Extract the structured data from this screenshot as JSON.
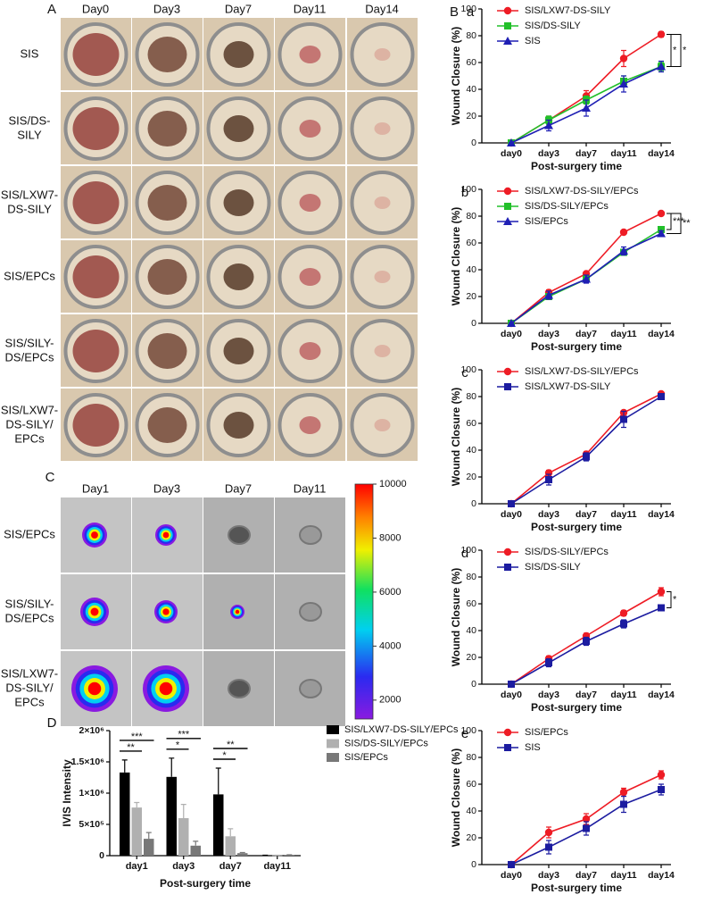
{
  "wound_photos": {
    "panel_label": "A",
    "days": [
      "Day0",
      "Day3",
      "Day7",
      "Day11",
      "Day14"
    ],
    "groups": [
      [
        "SIS"
      ],
      [
        "SIS/DS-",
        "SILY"
      ],
      [
        "SIS/LXW7-",
        "DS-SILY"
      ],
      [
        "SIS/EPCs"
      ],
      [
        "SIS/SILY-",
        "DS/EPCs"
      ],
      [
        "SIS/LXW7-",
        "DS-SILY/",
        "EPCs"
      ]
    ]
  },
  "ivis_photos": {
    "panel_label": "C",
    "days": [
      "Day1",
      "Day3",
      "Day7",
      "Day11"
    ],
    "groups": [
      [
        "SIS/EPCs"
      ],
      [
        "SIS/SILY-",
        "DS/EPCs"
      ],
      [
        "SIS/LXW7-",
        "DS-SILY/",
        "EPCs"
      ]
    ],
    "colorbar": {
      "ylim": [
        1300,
        10000
      ],
      "yticks": [
        10000,
        8000,
        6000,
        4000,
        2000
      ]
    }
  },
  "chart_data": [
    {
      "type": "line",
      "panel_label": "B",
      "label": "a",
      "categories": [
        "day0",
        "day3",
        "day7",
        "day11",
        "day14"
      ],
      "xlabel": "Post-surgery time",
      "ylabel": "Wound Closure (%)",
      "ylim": [
        0,
        100
      ],
      "yticks": [
        0,
        20,
        40,
        60,
        80,
        100
      ],
      "series": [
        {
          "name": "SIS/LXW7-DS-SILY",
          "color": "#ee1c25",
          "marker": "circle",
          "values": [
            0,
            17,
            35,
            63,
            81
          ],
          "errors": [
            0,
            3,
            4,
            6,
            2
          ]
        },
        {
          "name": "SIS/DS-SILY",
          "color": "#22c02a",
          "marker": "square",
          "values": [
            0,
            17,
            32,
            46,
            57
          ],
          "errors": [
            0,
            3,
            3,
            4,
            3
          ]
        },
        {
          "name": "SIS",
          "color": "#1f1fb4",
          "marker": "triangle",
          "values": [
            0,
            13,
            26,
            44,
            57
          ],
          "errors": [
            0,
            4,
            6,
            6,
            4
          ]
        }
      ],
      "annotations": [
        "*",
        "*"
      ]
    },
    {
      "type": "line",
      "label": "b",
      "categories": [
        "day0",
        "day3",
        "day7",
        "day11",
        "day14"
      ],
      "xlabel": "Post-surgery time",
      "ylabel": "Wound Closure (%)",
      "ylim": [
        0,
        100
      ],
      "yticks": [
        0,
        20,
        40,
        60,
        80,
        100
      ],
      "series": [
        {
          "name": "SIS/LXW7-DS-SILY/EPCs",
          "color": "#ee1c25",
          "marker": "circle",
          "values": [
            0,
            23,
            37,
            68,
            82
          ],
          "errors": [
            0,
            2,
            1,
            1,
            1
          ]
        },
        {
          "name": "SIS/DS-SILY/EPCs",
          "color": "#22c02a",
          "marker": "square",
          "values": [
            0,
            20,
            33,
            53,
            70
          ],
          "errors": [
            0,
            2,
            2,
            2,
            2
          ]
        },
        {
          "name": "SIS/EPCs",
          "color": "#1f1fb4",
          "marker": "triangle",
          "values": [
            0,
            21,
            33,
            54,
            67
          ],
          "errors": [
            0,
            3,
            3,
            3,
            2
          ]
        }
      ],
      "annotations": [
        "***",
        "**"
      ]
    },
    {
      "type": "line",
      "label": "c",
      "categories": [
        "day0",
        "day3",
        "day7",
        "day11",
        "day14"
      ],
      "xlabel": "Post-surgery time",
      "ylabel": "Wound Closure (%)",
      "ylim": [
        0,
        100
      ],
      "yticks": [
        0,
        20,
        40,
        60,
        80,
        100
      ],
      "series": [
        {
          "name": "SIS/LXW7-DS-SILY/EPCs",
          "color": "#ee1c25",
          "marker": "circle",
          "values": [
            0,
            23,
            37,
            68,
            82
          ],
          "errors": [
            0,
            2,
            2,
            1,
            1
          ]
        },
        {
          "name": "SIS/LXW7-DS-SILY",
          "color": "#1c1ca0",
          "marker": "square",
          "values": [
            0,
            18,
            35,
            63,
            80
          ],
          "errors": [
            0,
            4,
            3,
            6,
            2
          ]
        }
      ]
    },
    {
      "type": "line",
      "label": "d",
      "categories": [
        "day0",
        "day3",
        "day7",
        "day11",
        "day14"
      ],
      "xlabel": "Post-surgery time",
      "ylabel": "Wound Closure (%)",
      "ylim": [
        0,
        100
      ],
      "yticks": [
        0,
        20,
        40,
        60,
        80,
        100
      ],
      "series": [
        {
          "name": "SIS/DS-SILY/EPCs",
          "color": "#ee1c25",
          "marker": "circle",
          "values": [
            0,
            19,
            36,
            53,
            69
          ],
          "errors": [
            0,
            2,
            2,
            2,
            3
          ]
        },
        {
          "name": "SIS/DS-SILY",
          "color": "#1c1ca0",
          "marker": "square",
          "values": [
            0,
            16,
            32,
            45,
            57
          ],
          "errors": [
            0,
            3,
            3,
            3,
            2
          ]
        }
      ],
      "annotations": [
        "*"
      ]
    },
    {
      "type": "line",
      "label": "e",
      "categories": [
        "day0",
        "day3",
        "day7",
        "day11",
        "day14"
      ],
      "xlabel": "Post-surgery time",
      "ylabel": "Wound Closure (%)",
      "ylim": [
        0,
        100
      ],
      "yticks": [
        0,
        20,
        40,
        60,
        80,
        100
      ],
      "series": [
        {
          "name": "SIS/EPCs",
          "color": "#ee1c25",
          "marker": "circle",
          "values": [
            0,
            24,
            34,
            54,
            67
          ],
          "errors": [
            0,
            4,
            4,
            3,
            3
          ]
        },
        {
          "name": "SIS",
          "color": "#1c1ca0",
          "marker": "square",
          "values": [
            0,
            13,
            27,
            45,
            56
          ],
          "errors": [
            0,
            5,
            5,
            6,
            4
          ]
        }
      ]
    },
    {
      "type": "bar",
      "panel_label": "D",
      "categories": [
        "day1",
        "day3",
        "day7",
        "day11"
      ],
      "xlabel": "Post-surgery time",
      "ylabel": "IVIS Intensity",
      "ylim": [
        0,
        2000000
      ],
      "yticks": [
        0,
        {
          "value": 500000,
          "label": "5×10⁵"
        },
        {
          "value": 1000000,
          "label": "1×10⁶"
        },
        {
          "value": 1500000,
          "label": "1.5×10⁶"
        },
        {
          "value": 2000000,
          "label": "2×10⁶"
        }
      ],
      "series": [
        {
          "name": "SIS/LXW7-DS-SILY/EPCs",
          "color": "#000000",
          "values": [
            1330000,
            1260000,
            980000,
            5000
          ],
          "errors": [
            200000,
            300000,
            420000,
            2000
          ]
        },
        {
          "name": "SIS/DS-SILY/EPCs",
          "color": "#b0b0b0",
          "values": [
            770000,
            600000,
            310000,
            5000
          ],
          "errors": [
            80000,
            220000,
            120000,
            2000
          ]
        },
        {
          "name": "SIS/EPCs",
          "color": "#787878",
          "values": [
            270000,
            160000,
            40000,
            12000
          ],
          "errors": [
            100000,
            70000,
            10000,
            3000
          ]
        }
      ],
      "annotations": [
        [
          "***",
          "**"
        ],
        [
          "***",
          "*"
        ],
        [
          "**",
          "*"
        ]
      ]
    }
  ]
}
